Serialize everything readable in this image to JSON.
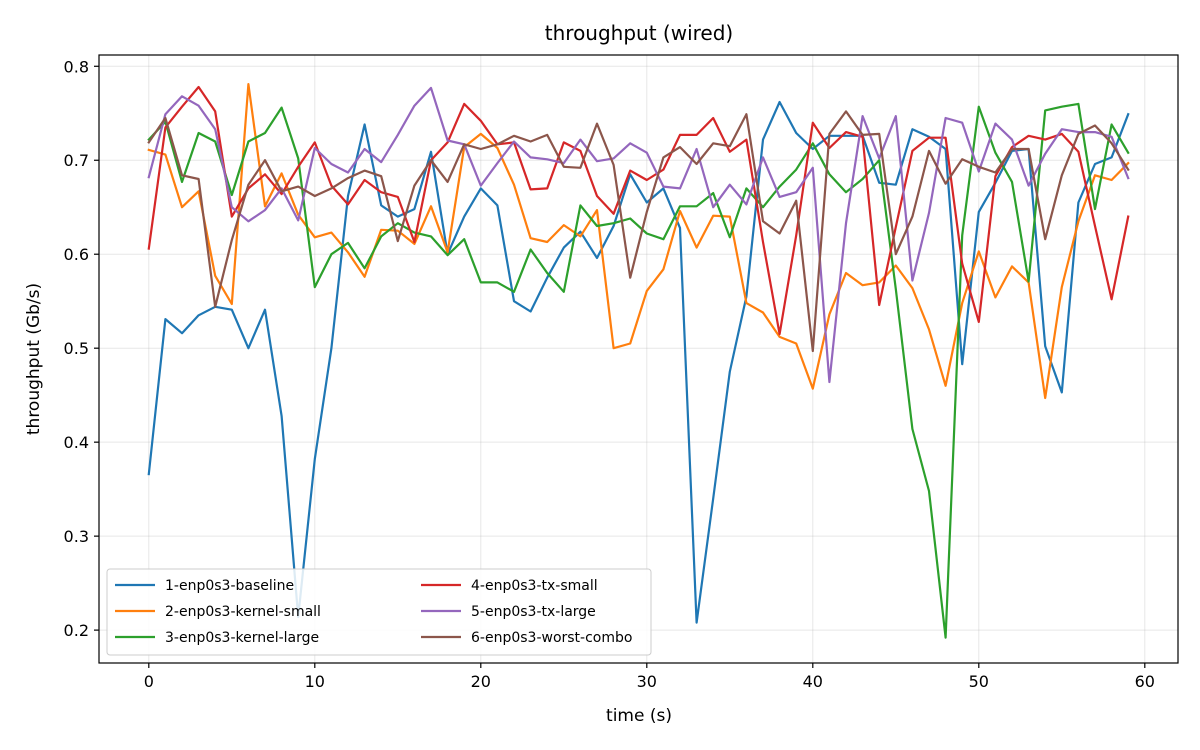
{
  "chart_data": {
    "type": "line",
    "title": "throughput (wired)",
    "xlabel": "time (s)",
    "ylabel": "throughput (Gb/s)",
    "xlim": [
      -3,
      62
    ],
    "ylim": [
      0.165,
      0.812
    ],
    "xticks": [
      0,
      10,
      20,
      30,
      40,
      50,
      60
    ],
    "yticks": [
      0.2,
      0.3,
      0.4,
      0.5,
      0.6,
      0.7,
      0.8
    ],
    "xtick_labels": [
      "0",
      "10",
      "20",
      "30",
      "40",
      "50",
      "60"
    ],
    "ytick_labels": [
      "0.2",
      "0.3",
      "0.4",
      "0.5",
      "0.6",
      "0.7",
      "0.8"
    ],
    "grid": true,
    "legend_position": "lower-left",
    "x": [
      0,
      1,
      2,
      3,
      4,
      5,
      6,
      7,
      8,
      9,
      10,
      11,
      12,
      13,
      14,
      15,
      16,
      17,
      18,
      19,
      20,
      21,
      22,
      23,
      24,
      25,
      26,
      27,
      28,
      29,
      30,
      31,
      32,
      33,
      34,
      35,
      36,
      37,
      38,
      39,
      40,
      41,
      42,
      43,
      44,
      45,
      46,
      47,
      48,
      49,
      50,
      51,
      52,
      53,
      54,
      55,
      56,
      57,
      58,
      59
    ],
    "series": [
      {
        "name": "1-enp0s3-baseline",
        "color": "#1f77b4",
        "values": [
          0.366,
          0.531,
          0.516,
          0.535,
          0.544,
          0.541,
          0.5,
          0.541,
          0.428,
          0.214,
          0.382,
          0.5,
          0.662,
          0.738,
          0.652,
          0.64,
          0.648,
          0.709,
          0.6,
          0.64,
          0.67,
          0.652,
          0.55,
          0.539,
          0.575,
          0.607,
          0.624,
          0.596,
          0.63,
          0.685,
          0.655,
          0.67,
          0.628,
          0.208,
          0.34,
          0.475,
          0.555,
          0.722,
          0.762,
          0.729,
          0.712,
          0.726,
          0.726,
          0.726,
          0.676,
          0.674,
          0.733,
          0.725,
          0.712,
          0.483,
          0.645,
          0.676,
          0.71,
          0.712,
          0.502,
          0.453,
          0.655,
          0.696,
          0.703,
          0.749
        ]
      },
      {
        "name": "2-enp0s3-kernel-small",
        "color": "#ff7f0e",
        "values": [
          0.711,
          0.706,
          0.65,
          0.667,
          0.577,
          0.547,
          0.781,
          0.651,
          0.686,
          0.642,
          0.618,
          0.623,
          0.602,
          0.576,
          0.626,
          0.625,
          0.611,
          0.651,
          0.602,
          0.714,
          0.728,
          0.713,
          0.674,
          0.617,
          0.613,
          0.631,
          0.619,
          0.647,
          0.5,
          0.505,
          0.561,
          0.584,
          0.646,
          0.607,
          0.641,
          0.64,
          0.548,
          0.538,
          0.512,
          0.505,
          0.457,
          0.536,
          0.58,
          0.567,
          0.57,
          0.588,
          0.564,
          0.52,
          0.46,
          0.548,
          0.603,
          0.554,
          0.587,
          0.57,
          0.447,
          0.565,
          0.635,
          0.684,
          0.679,
          0.697
        ]
      },
      {
        "name": "3-enp0s3-kernel-large",
        "color": "#2ca02c",
        "values": [
          0.722,
          0.741,
          0.677,
          0.729,
          0.72,
          0.663,
          0.72,
          0.729,
          0.756,
          0.702,
          0.565,
          0.6,
          0.612,
          0.585,
          0.619,
          0.633,
          0.623,
          0.619,
          0.599,
          0.616,
          0.57,
          0.57,
          0.56,
          0.605,
          0.58,
          0.56,
          0.652,
          0.63,
          0.633,
          0.638,
          0.622,
          0.616,
          0.651,
          0.651,
          0.665,
          0.618,
          0.67,
          0.65,
          0.672,
          0.69,
          0.718,
          0.685,
          0.666,
          0.68,
          0.7,
          0.563,
          0.414,
          0.348,
          0.192,
          0.62,
          0.757,
          0.708,
          0.677,
          0.571,
          0.753,
          0.757,
          0.76,
          0.648,
          0.738,
          0.708
        ]
      },
      {
        "name": "4-enp0s3-tx-small",
        "color": "#d62728",
        "values": [
          0.606,
          0.735,
          0.757,
          0.778,
          0.752,
          0.64,
          0.67,
          0.685,
          0.664,
          0.693,
          0.719,
          0.673,
          0.653,
          0.679,
          0.666,
          0.661,
          0.613,
          0.7,
          0.719,
          0.76,
          0.742,
          0.717,
          0.719,
          0.669,
          0.67,
          0.719,
          0.71,
          0.662,
          0.643,
          0.689,
          0.679,
          0.69,
          0.727,
          0.727,
          0.745,
          0.709,
          0.722,
          0.613,
          0.515,
          0.62,
          0.74,
          0.713,
          0.73,
          0.725,
          0.546,
          0.629,
          0.71,
          0.724,
          0.724,
          0.59,
          0.528,
          0.683,
          0.714,
          0.726,
          0.722,
          0.728,
          0.709,
          0.63,
          0.552,
          0.64
        ]
      },
      {
        "name": "5-enp0s3-tx-large",
        "color": "#9467bd",
        "values": [
          0.682,
          0.749,
          0.768,
          0.758,
          0.733,
          0.65,
          0.635,
          0.647,
          0.67,
          0.636,
          0.713,
          0.696,
          0.687,
          0.712,
          0.698,
          0.727,
          0.758,
          0.777,
          0.721,
          0.717,
          0.673,
          0.697,
          0.72,
          0.703,
          0.701,
          0.697,
          0.722,
          0.699,
          0.702,
          0.718,
          0.708,
          0.672,
          0.67,
          0.712,
          0.65,
          0.674,
          0.653,
          0.703,
          0.661,
          0.666,
          0.692,
          0.464,
          0.633,
          0.747,
          0.702,
          0.747,
          0.572,
          0.644,
          0.745,
          0.74,
          0.688,
          0.739,
          0.722,
          0.673,
          0.707,
          0.733,
          0.73,
          0.73,
          0.725,
          0.681
        ]
      },
      {
        "name": "6-enp0s3-worst-combo",
        "color": "#8c564b",
        "values": [
          0.719,
          0.745,
          0.684,
          0.68,
          0.544,
          0.615,
          0.674,
          0.7,
          0.667,
          0.672,
          0.662,
          0.67,
          0.681,
          0.689,
          0.683,
          0.614,
          0.673,
          0.7,
          0.677,
          0.717,
          0.712,
          0.717,
          0.726,
          0.72,
          0.727,
          0.693,
          0.692,
          0.739,
          0.695,
          0.575,
          0.645,
          0.703,
          0.714,
          0.696,
          0.718,
          0.715,
          0.749,
          0.635,
          0.622,
          0.657,
          0.497,
          0.728,
          0.752,
          0.727,
          0.728,
          0.6,
          0.64,
          0.71,
          0.675,
          0.701,
          0.693,
          0.687,
          0.712,
          0.712,
          0.616,
          0.684,
          0.728,
          0.737,
          0.718,
          0.69
        ]
      }
    ]
  }
}
